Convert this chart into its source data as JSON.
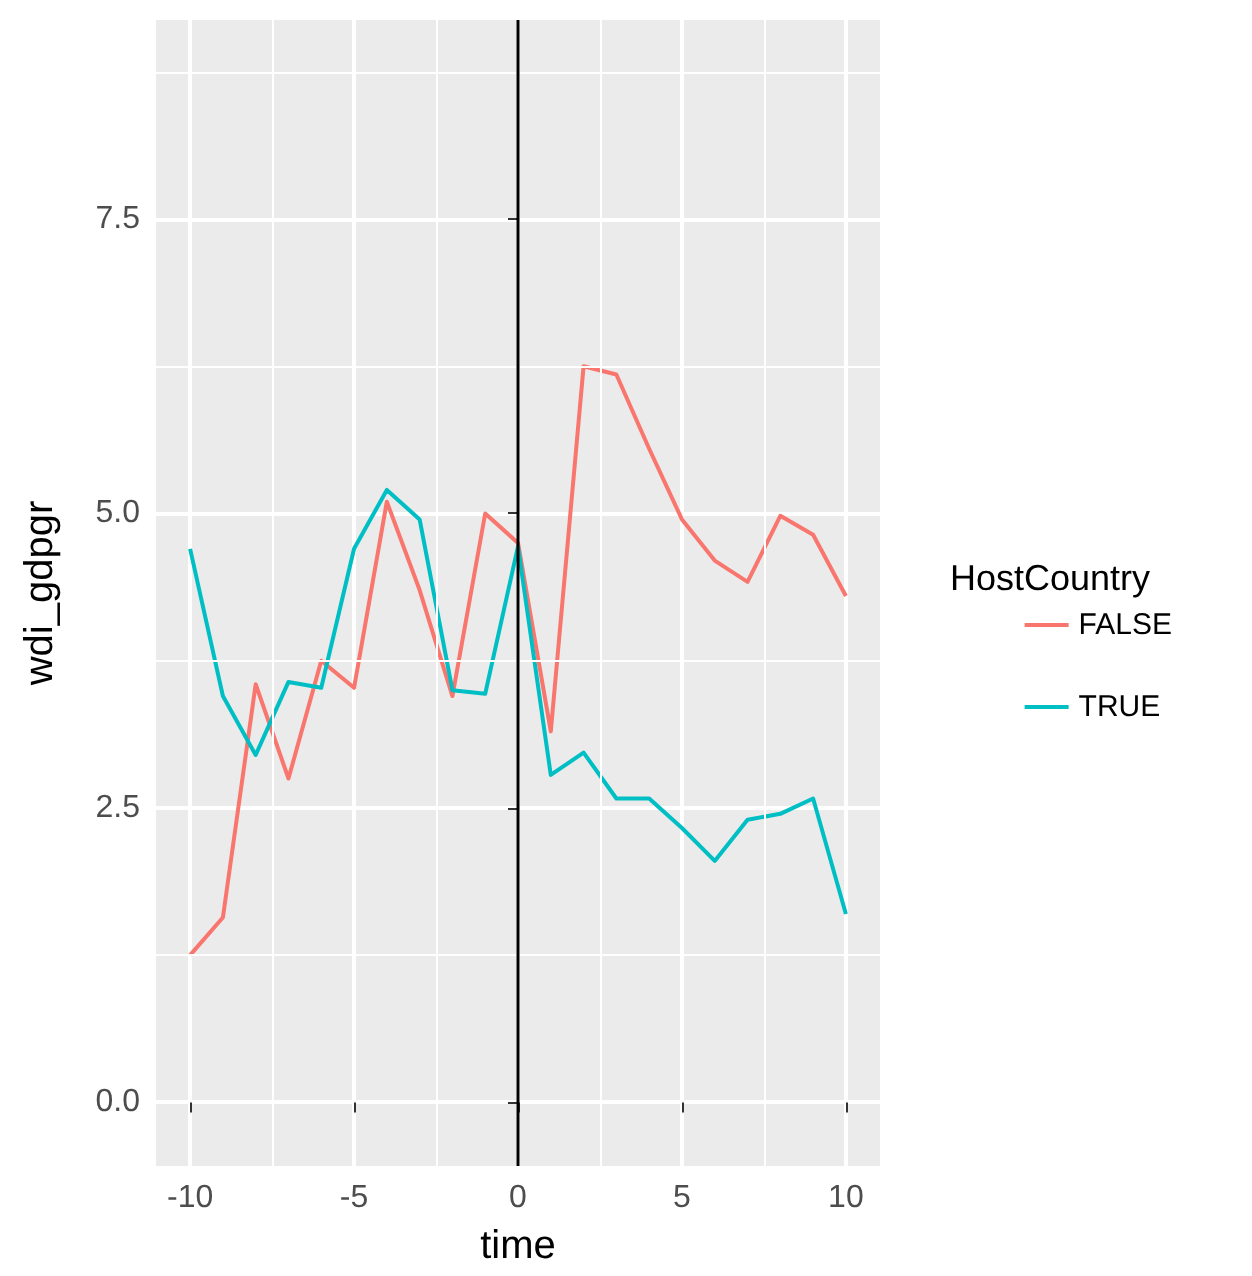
{
  "chart_data": {
    "type": "line",
    "xlabel": "time",
    "ylabel": "wdi_gdpgr",
    "legend_title": "HostCountry",
    "legend": "right",
    "grid": true,
    "x": [
      -10,
      -9,
      -8,
      -7,
      -6,
      -5,
      -4,
      -3,
      -2,
      -1,
      0,
      1,
      2,
      3,
      4,
      5,
      6,
      7,
      8,
      9,
      10
    ],
    "series": [
      {
        "name": "FALSE",
        "color": "#f8766d",
        "values": [
          1.25,
          1.57,
          3.55,
          2.75,
          3.75,
          3.52,
          5.1,
          4.35,
          3.45,
          5.0,
          4.75,
          3.15,
          6.25,
          6.18,
          5.55,
          4.95,
          4.6,
          4.42,
          4.98,
          4.82,
          4.3
        ]
      },
      {
        "name": "TRUE",
        "color": "#00bfc4",
        "values": [
          4.7,
          3.45,
          2.95,
          3.57,
          3.52,
          4.7,
          5.2,
          4.95,
          3.5,
          3.47,
          4.72,
          2.78,
          2.97,
          2.58,
          2.58,
          2.33,
          2.05,
          2.4,
          2.45,
          2.58,
          1.6
        ]
      }
    ],
    "xlim": [
      -11.04,
      11.04
    ],
    "xticks": [
      -10,
      -5,
      0,
      5,
      10
    ],
    "ylim": [
      -0.54,
      9.19
    ],
    "yticks": [
      {
        "value": 0,
        "label": "0.0"
      },
      {
        "value": 2.5,
        "label": "2.5"
      },
      {
        "value": 5,
        "label": "5.0"
      },
      {
        "value": 7.5,
        "label": "7.5"
      }
    ],
    "ref_lines": [
      {
        "axis": "x",
        "value": 0,
        "color": "#000000"
      }
    ]
  }
}
